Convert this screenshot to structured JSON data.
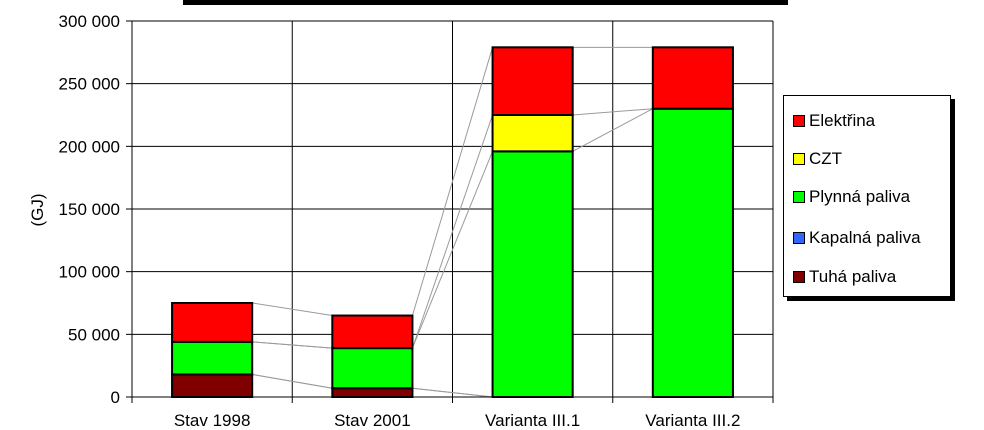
{
  "chart_data": {
    "type": "bar",
    "stacked": true,
    "title": "",
    "xlabel": "",
    "ylabel": "(GJ)",
    "ylim": [
      0,
      300000
    ],
    "yticks": [
      "0",
      "50 000",
      "100 000",
      "150 000",
      "200 000",
      "250 000",
      "300 000"
    ],
    "categories": [
      "Stav 1998",
      "Stav 2001",
      "Varianta III.1",
      "Varianta III.2"
    ],
    "series": [
      {
        "name": "Tuhá paliva",
        "color": "#800000",
        "values": [
          18000,
          7000,
          0,
          0
        ]
      },
      {
        "name": "Kapalná paliva",
        "color": "#3366ff",
        "values": [
          0,
          0,
          0,
          0
        ]
      },
      {
        "name": "Plynná paliva",
        "color": "#00ff00",
        "values": [
          26000,
          32000,
          196000,
          230000
        ]
      },
      {
        "name": "CZT",
        "color": "#ffff00",
        "values": [
          0,
          0,
          29000,
          0
        ]
      },
      {
        "name": "Elektřina",
        "color": "#ff0000",
        "values": [
          31000,
          26000,
          54000,
          49000
        ]
      }
    ],
    "legend": {
      "position": "right",
      "items": [
        "Elektřina",
        "CZT",
        "Plynná paliva",
        "Kapalná paliva",
        "Tuhá paliva"
      ]
    },
    "grid": true,
    "series_lines": true
  }
}
